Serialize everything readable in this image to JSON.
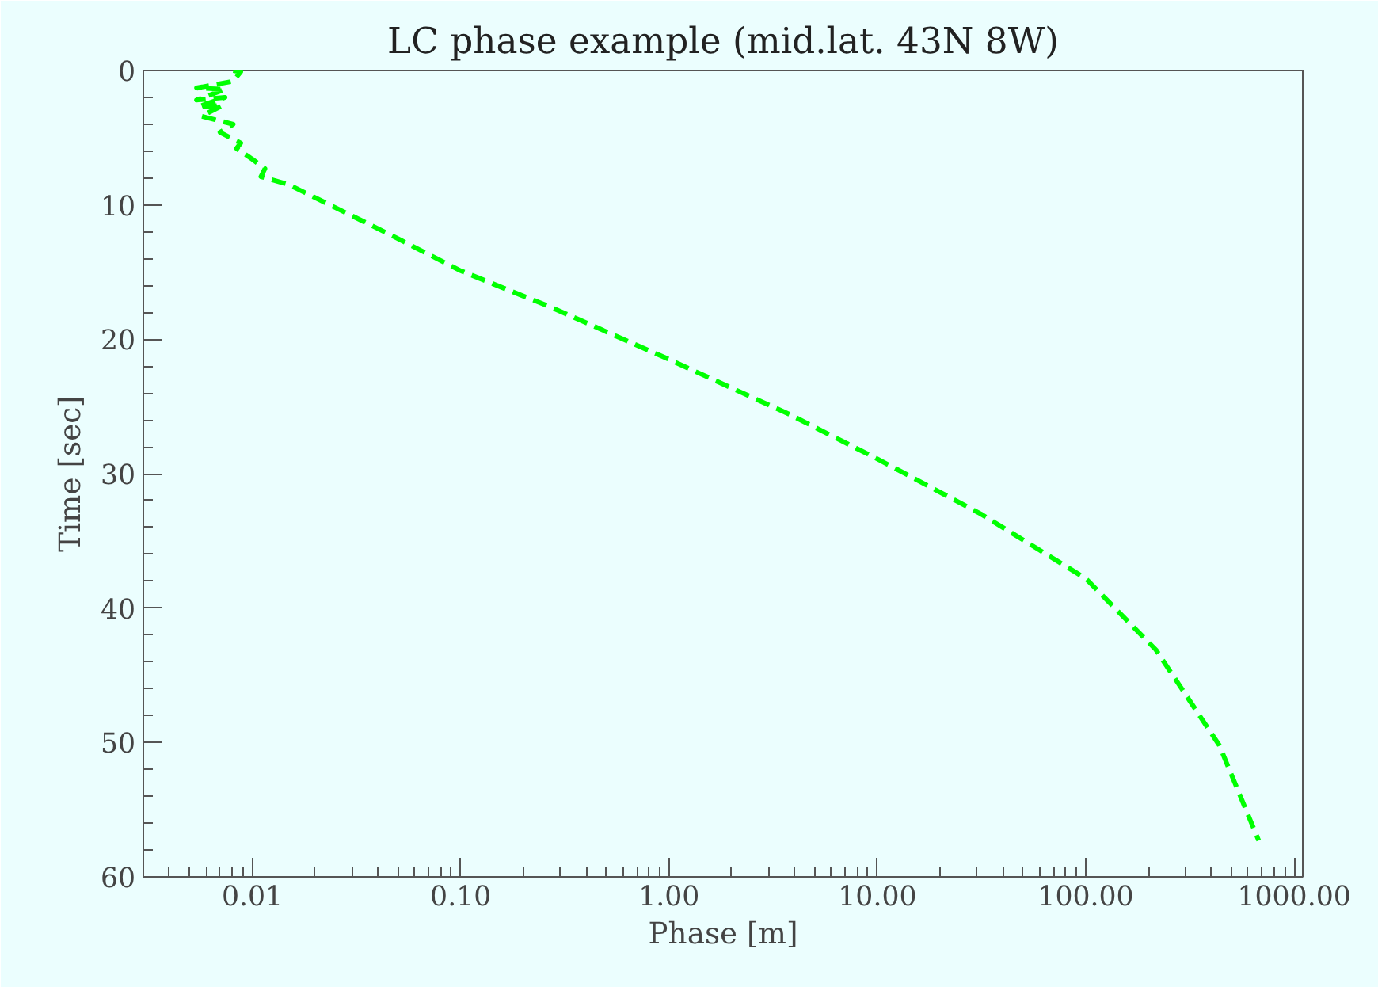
{
  "chart_data": {
    "type": "line",
    "title": "LC phase example (mid.lat. 43N 8W)",
    "xlabel": "Phase [m]",
    "ylabel": "Time [sec]",
    "log": "x",
    "grid": false,
    "line_style": "dashed",
    "marker": "none",
    "xlim": [
      0.003,
      1100
    ],
    "ylim": [
      60,
      0
    ],
    "xticks": [
      {
        "value": 0.01,
        "label": "0.01"
      },
      {
        "value": 0.1,
        "label": "0.10"
      },
      {
        "value": 1,
        "label": "1.00"
      },
      {
        "value": 10,
        "label": "10.00"
      },
      {
        "value": 100,
        "label": "100.00"
      },
      {
        "value": 1000,
        "label": "1000.00"
      }
    ],
    "yticks": [
      0,
      10,
      20,
      30,
      40,
      50,
      60
    ],
    "series": [
      {
        "color": "#00ff00",
        "x": [
          0.0081,
          0.0088,
          0.0081,
          0.0054,
          0.0074,
          0.0054,
          0.0074,
          0.0055,
          0.0072,
          0.0057,
          0.0081,
          0.007,
          0.0088,
          0.0084,
          0.01,
          0.0115,
          0.011,
          0.015,
          0.043,
          0.1,
          0.27,
          1.0,
          3.8,
          10,
          31.4,
          100,
          217,
          437,
          676
        ],
        "values": [
          0,
          0.1,
          0.8,
          1.3,
          1.4,
          2.2,
          2.0,
          2.7,
          2.6,
          3.4,
          4.0,
          4.6,
          5.4,
          5.8,
          6.6,
          7.3,
          7.9,
          8.5,
          12,
          14.9,
          17.6,
          21.5,
          25.6,
          28.9,
          33.0,
          37.8,
          43.1,
          50.2,
          57.3
        ]
      }
    ]
  }
}
